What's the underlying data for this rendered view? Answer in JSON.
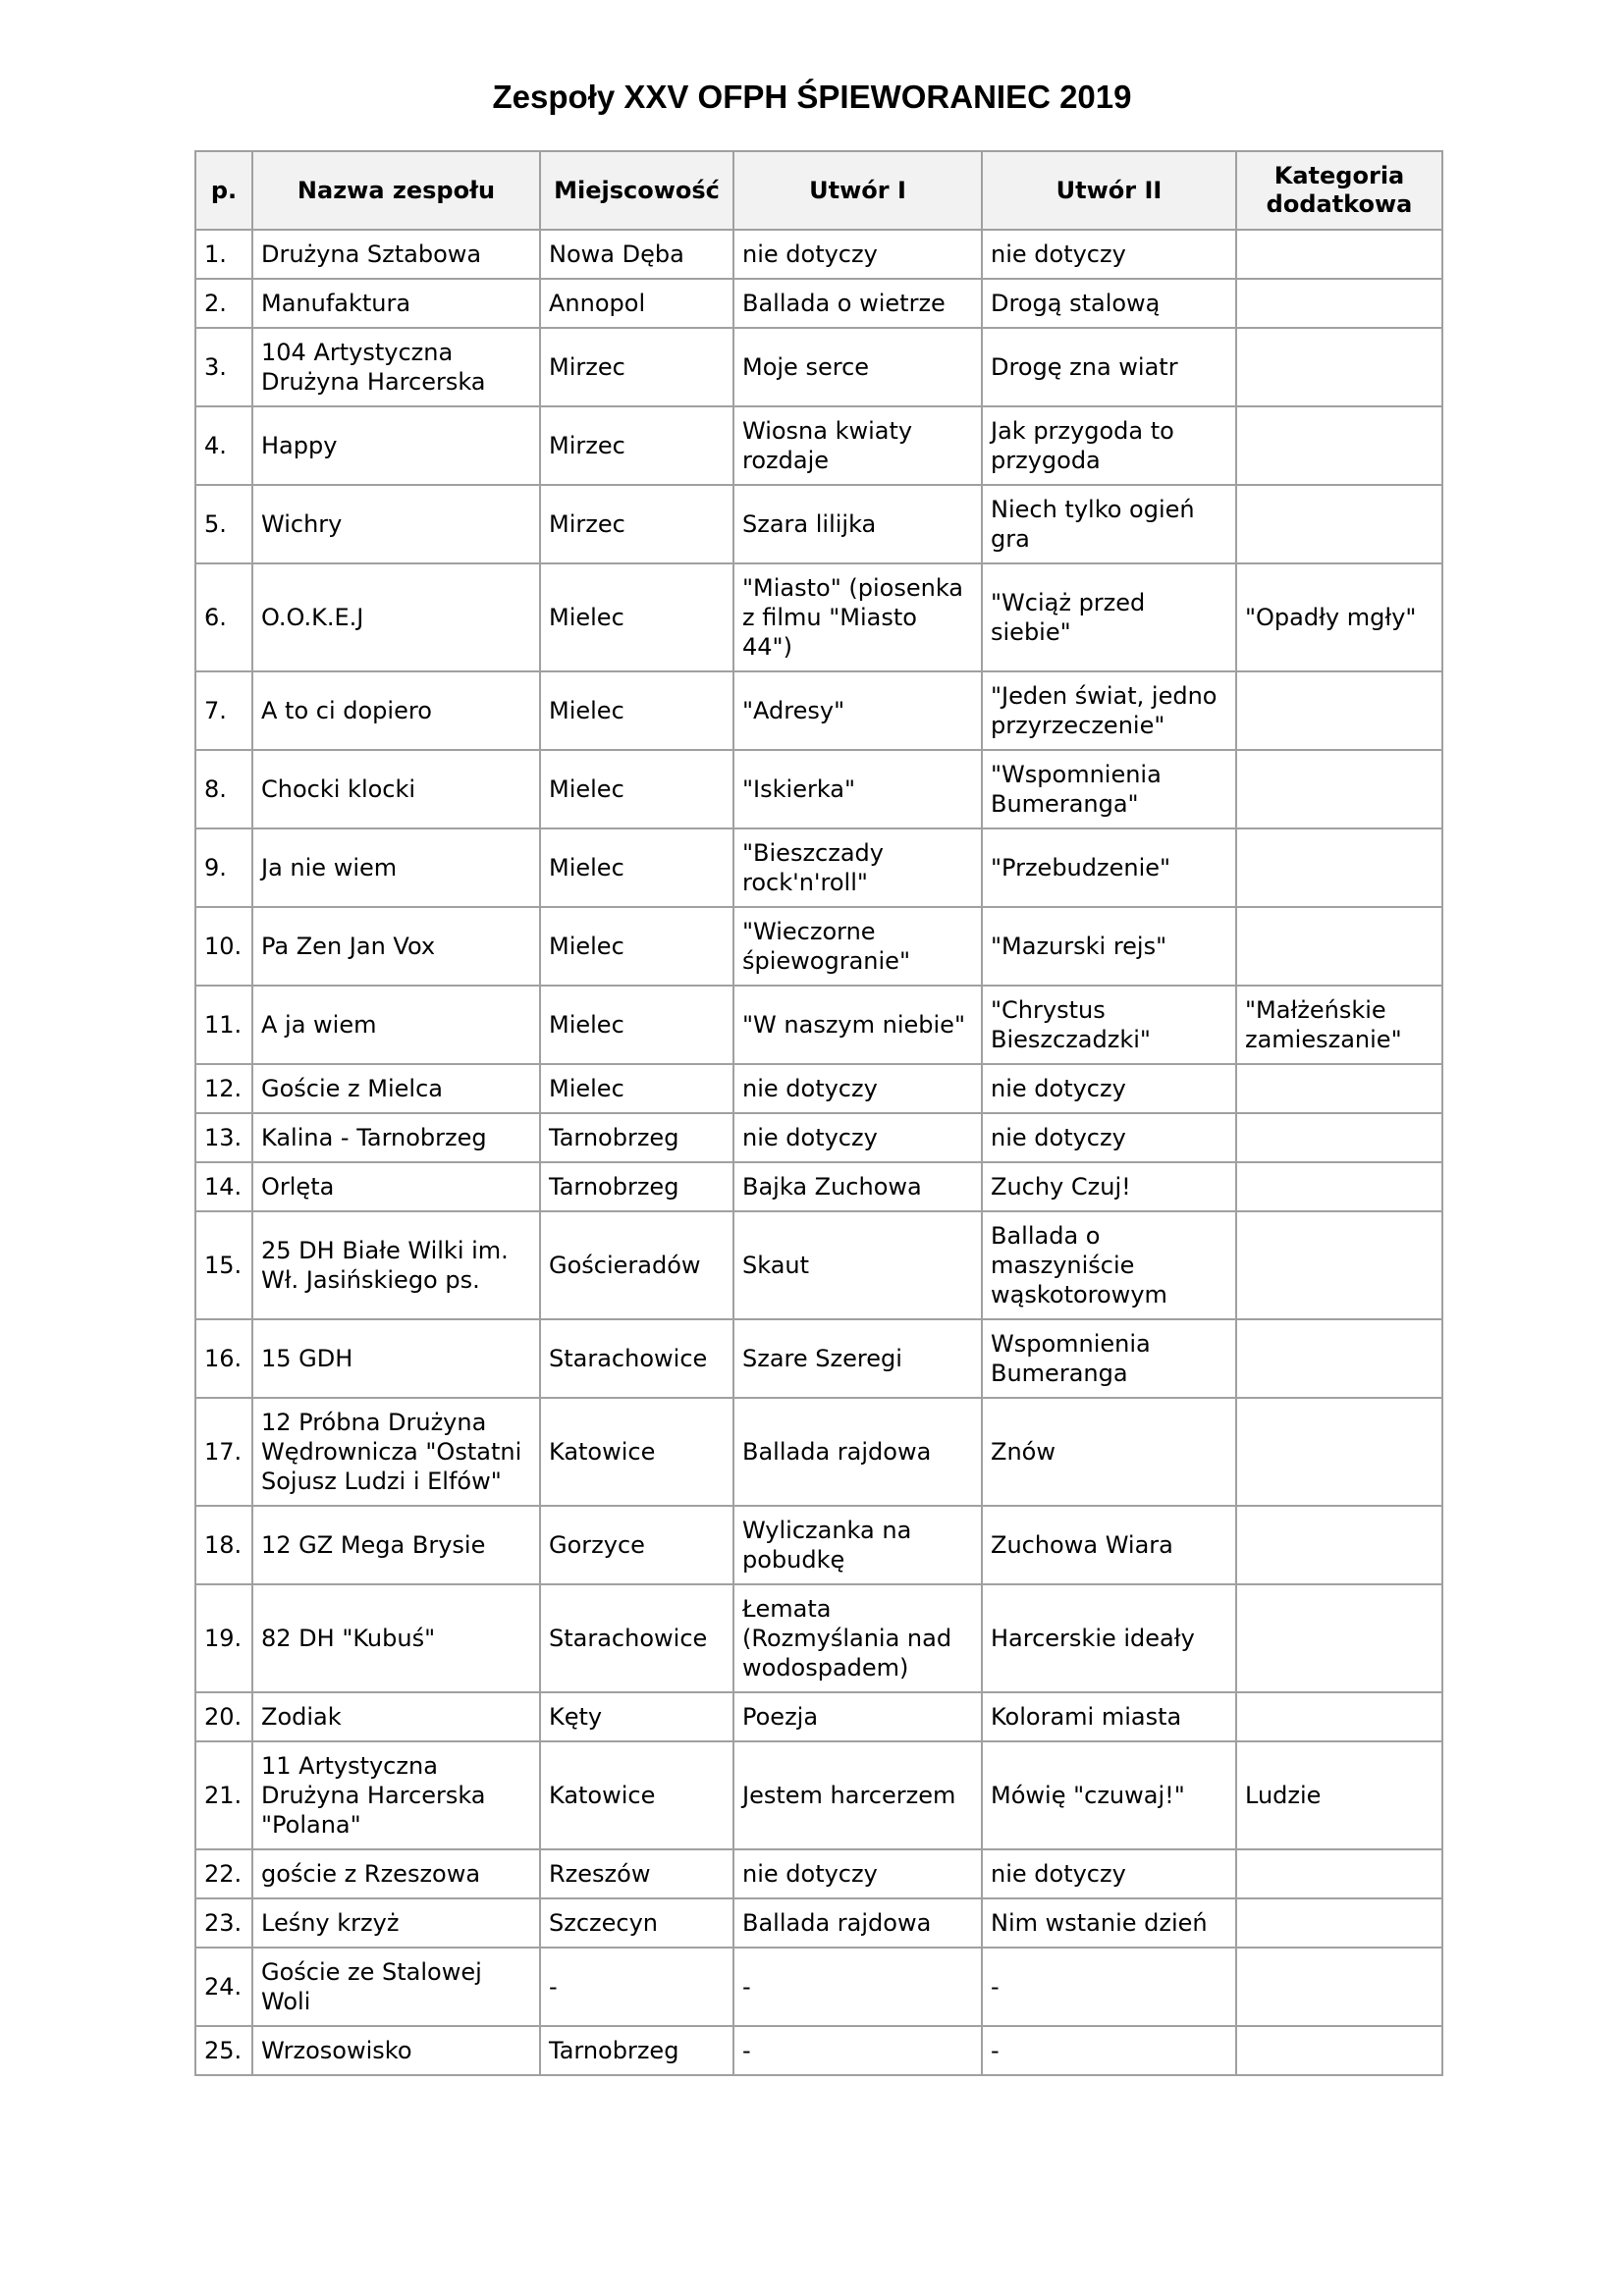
{
  "title": "Zespoły XXV OFPH ŚPIEWORANIEC 2019",
  "table": {
    "header": [
      "p.",
      "Nazwa zespołu",
      "Miejscowość",
      "Utwór I",
      "Utwór II",
      "Kategoria dodatkowa"
    ],
    "rows": [
      [
        "1.",
        "Drużyna Sztabowa",
        "Nowa Dęba",
        "nie dotyczy",
        "nie dotyczy"
      ],
      [
        "2.",
        "Manufaktura",
        "Annopol",
        "Ballada o wietrze",
        "Drogą stalową"
      ],
      [
        "3.",
        "104 Artystyczna Drużyna Harcerska",
        "Mirzec",
        "Moje serce",
        "Drogę zna wiatr"
      ],
      [
        "4.",
        "Happy",
        "Mirzec",
        "Wiosna kwiaty rozdaje",
        "Jak przygoda to przygoda"
      ],
      [
        "5.",
        "Wichry",
        "Mirzec",
        "Szara lilijka",
        "Niech tylko ogień gra"
      ],
      [
        "6.",
        "O.O.K.E.J",
        "Mielec",
        "\"Miasto\" (piosenka z filmu \"Miasto 44\")",
        "\"Wciąż przed siebie\"",
        "\"Opadły mgły\""
      ],
      [
        "7.",
        "A to ci dopiero",
        "Mielec",
        "\"Adresy\"",
        "\"Jeden świat, jedno przyrzeczenie\""
      ],
      [
        "8.",
        "Chocki klocki",
        "Mielec",
        "\"Iskierka\"",
        "\"Wspomnienia Bumeranga\""
      ],
      [
        "9.",
        "Ja nie wiem",
        "Mielec",
        "\"Bieszczady rock'n'roll\"",
        "\"Przebudzenie\""
      ],
      [
        "10.",
        "Pa Zen Jan Vox",
        "Mielec",
        "\"Wieczorne śpiewogranie\"",
        "\"Mazurski rejs\""
      ],
      [
        "11.",
        "A ja wiem",
        "Mielec",
        "\"W naszym niebie\"",
        "\"Chrystus Bieszczadzki\"",
        "\"Małżeńskie zamieszanie\""
      ],
      [
        "12.",
        "Goście z Mielca",
        "Mielec",
        "nie dotyczy",
        "nie dotyczy"
      ],
      [
        "13.",
        "Kalina - Tarnobrzeg",
        "Tarnobrzeg",
        "nie dotyczy",
        "nie dotyczy"
      ],
      [
        "14.",
        "Orlęta",
        "Tarnobrzeg",
        "Bajka Zuchowa",
        "Zuchy Czuj!"
      ],
      [
        "15.",
        "25 DH Białe Wilki im. Wł. Jasińskiego ps.",
        "Gościeradów",
        "Skaut",
        "Ballada o maszyniście wąskotorowym"
      ],
      [
        "16.",
        "15 GDH",
        "Starachowice",
        "Szare Szeregi",
        "Wspomnienia Bumeranga"
      ],
      [
        "17.",
        "12 Próbna Drużyna Wędrownicza \"Ostatni Sojusz Ludzi i Elfów\"",
        "Katowice",
        "Ballada rajdowa",
        "Znów"
      ],
      [
        "18.",
        "12 GZ Mega Brysie",
        "Gorzyce",
        "Wyliczanka na pobudkę",
        "Zuchowa Wiara"
      ],
      [
        "19.",
        "82 DH \"Kubuś\"",
        "Starachowice",
        "Łemata (Rozmyślania nad wodospadem)",
        "Harcerskie ideały"
      ],
      [
        "20.",
        "Zodiak",
        "Kęty",
        "Poezja",
        "Kolorami miasta"
      ],
      [
        "21.",
        "11 Artystyczna Drużyna Harcerska \"Polana\"",
        "Katowice",
        "Jestem harcerzem",
        "Mówię \"czuwaj!\"",
        "Ludzie"
      ],
      [
        "22.",
        "goście z Rzeszowa",
        "Rzeszów",
        "nie dotyczy",
        "nie dotyczy"
      ],
      [
        "23.",
        "Leśny krzyż",
        "Szczecyn",
        "Ballada rajdowa",
        "Nim wstanie dzień"
      ],
      [
        "24.",
        "Goście ze Stalowej Woli",
        "-",
        "-",
        "-"
      ],
      [
        "25.",
        "Wrzosowisko",
        "Tarnobrzeg",
        "-",
        "-"
      ]
    ]
  }
}
